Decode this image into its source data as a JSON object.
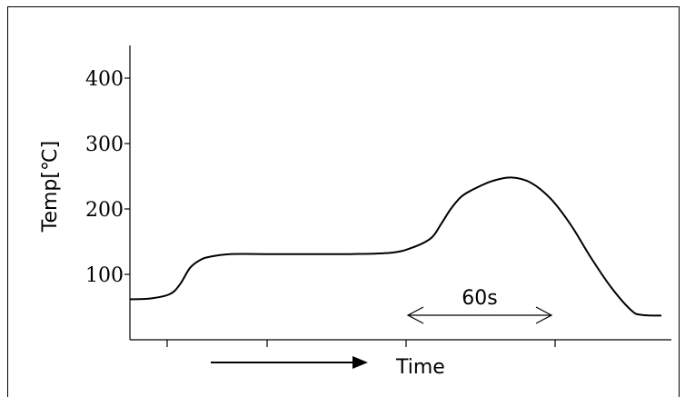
{
  "chart_data": {
    "type": "line",
    "ylabel": "Temp[℃]",
    "yticks": [
      100,
      200,
      300,
      400
    ],
    "ylim": [
      0,
      450
    ],
    "xlim": [
      0,
      270
    ],
    "series": [
      {
        "x": [
          0,
          10,
          20,
          25,
          30,
          35,
          40,
          50,
          70,
          90,
          110,
          130,
          140,
          150,
          155,
          160,
          165,
          170,
          180,
          190,
          200,
          210,
          220,
          230,
          240,
          250,
          255,
          265
        ],
        "y": [
          62,
          63,
          70,
          85,
          110,
          122,
          127,
          131,
          131,
          131,
          131,
          133,
          140,
          155,
          176,
          200,
          218,
          228,
          242,
          248,
          240,
          215,
          175,
          125,
          80,
          45,
          38,
          37
        ]
      }
    ],
    "annotations": {
      "duration_label": "60s",
      "time_label": "Time"
    },
    "grid": false,
    "legend": "none"
  }
}
